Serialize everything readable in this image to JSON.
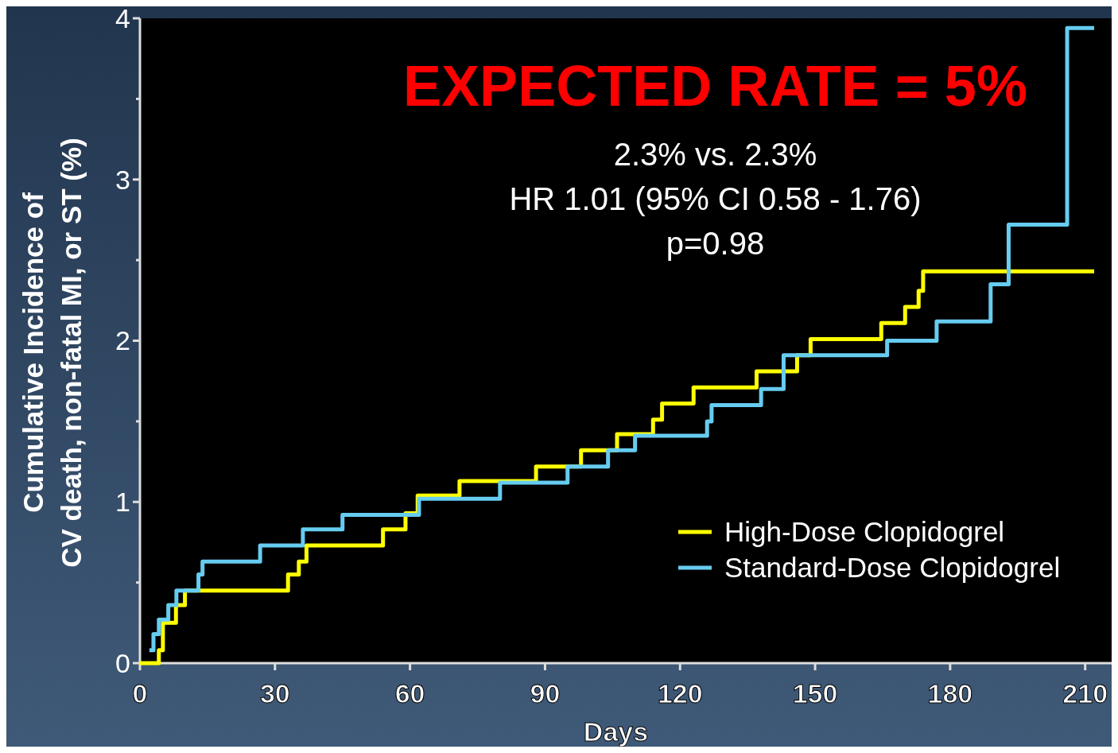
{
  "chart_data": {
    "type": "step",
    "xlabel": "Days",
    "ylabel": "Cumulative Incidence of\nCV death, non-fatal MI, or ST (%)",
    "xlim": [
      0,
      215
    ],
    "xticks": [
      0,
      30,
      60,
      90,
      120,
      150,
      180,
      210
    ],
    "ylim": [
      0,
      4
    ],
    "yticks": [
      0,
      {
        "value": 0.5,
        "label": null
      },
      1,
      {
        "value": 1.5,
        "label": null
      },
      2,
      {
        "value": 2.5,
        "label": null
      },
      3,
      {
        "value": 3.5,
        "label": null
      },
      4
    ],
    "legend": "bottom right",
    "grid": false,
    "annotations": [
      "2.3% vs. 2.3%",
      "HR 1.01 (95% CI 0.58 - 1.76)",
      "p=0.98",
      "EXPECTED RATE = 5%"
    ],
    "series": [
      {
        "name": "High-Dose Clopidogrel",
        "color": "#ffff00",
        "x": [
          0,
          4.2,
          5.1,
          8,
          10,
          32.9,
          35.3,
          37,
          54,
          59,
          61.7,
          71,
          88,
          98,
          106,
          114,
          116,
          123,
          137,
          146,
          149,
          164.7,
          170,
          173,
          174,
          212
        ],
        "values": [
          0,
          0.08,
          0.25,
          0.36,
          0.45,
          0.55,
          0.63,
          0.73,
          0.83,
          0.93,
          1.04,
          1.13,
          1.22,
          1.32,
          1.42,
          1.51,
          1.61,
          1.71,
          1.81,
          1.91,
          2.01,
          2.11,
          2.21,
          2.31,
          2.43,
          2.43
        ]
      },
      {
        "name": "Standard-Dose Clopidogrel",
        "color": "#66ccf0",
        "x": [
          2.1,
          3,
          4.2,
          6.3,
          8.1,
          13,
          13.9,
          26.7,
          36.2,
          45,
          62,
          80,
          95,
          104,
          110,
          126,
          127,
          138,
          143,
          166,
          177,
          189,
          193,
          206,
          212
        ],
        "values": [
          0.08,
          0.18,
          0.27,
          0.36,
          0.45,
          0.55,
          0.63,
          0.73,
          0.83,
          0.92,
          1.02,
          1.12,
          1.22,
          1.32,
          1.41,
          1.5,
          1.6,
          1.7,
          1.91,
          2.0,
          2.12,
          2.35,
          2.72,
          3.94,
          3.94
        ]
      }
    ]
  }
}
